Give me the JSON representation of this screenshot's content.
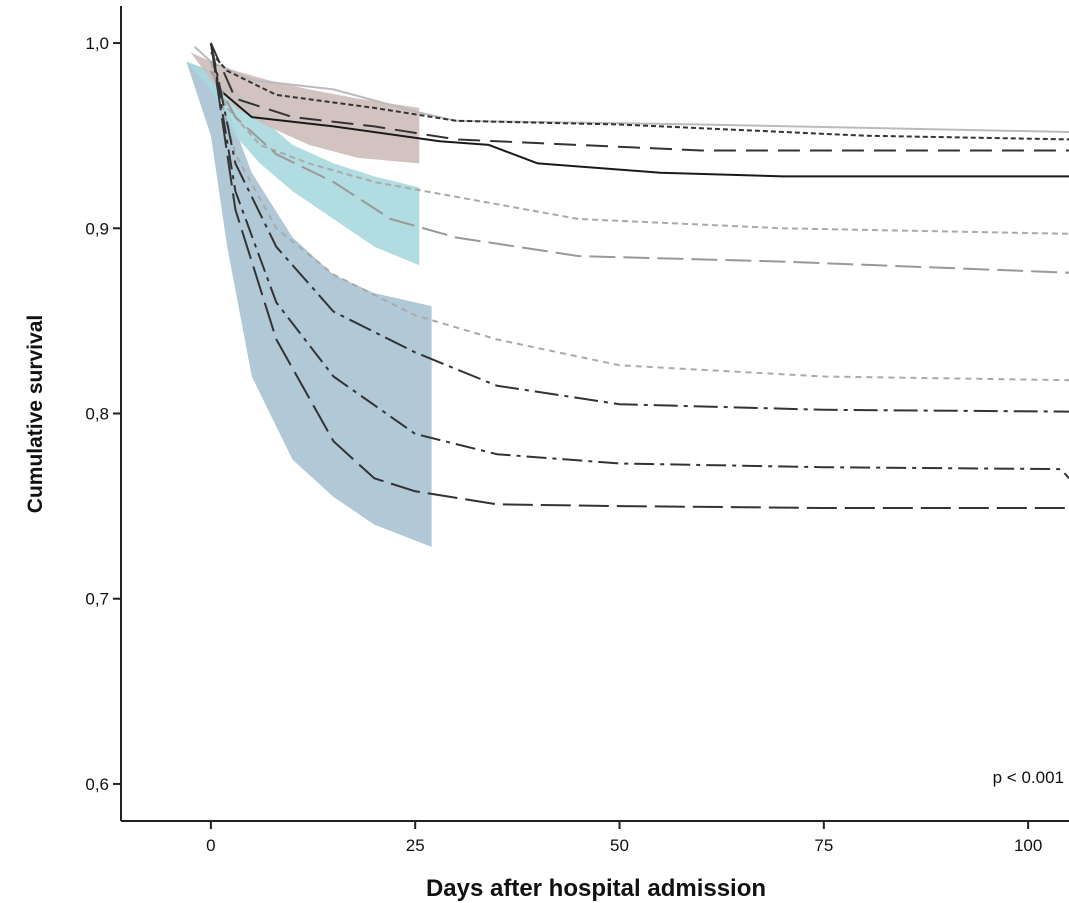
{
  "chart_data": {
    "type": "line",
    "title": "",
    "xlabel": "Days after hospital admission",
    "ylabel": "Cumulative survival",
    "xlim": [
      -11,
      105
    ],
    "ylim": [
      0.58,
      1.02
    ],
    "x_ticks": [
      0,
      25,
      50,
      75,
      100
    ],
    "x_tick_labels": [
      "0",
      "25",
      "50",
      "75",
      "100"
    ],
    "y_ticks": [
      0.6,
      0.7,
      0.8,
      0.9,
      1.0
    ],
    "y_tick_labels": [
      "0,6",
      "0,7",
      "0,8",
      "0,9",
      "1,0"
    ],
    "grid": false,
    "annotation": "p < 0.001",
    "bands": [
      {
        "color": "#a9c2d3",
        "x": [
          -3,
          0,
          2,
          5,
          10,
          15,
          20,
          27
        ],
        "lower": [
          0.99,
          0.95,
          0.89,
          0.82,
          0.775,
          0.755,
          0.74,
          0.728
        ],
        "upper": [
          0.99,
          0.985,
          0.965,
          0.93,
          0.895,
          0.875,
          0.865,
          0.858
        ]
      },
      {
        "color": "#a8d8df",
        "x": [
          -3,
          0,
          3,
          6,
          10,
          15,
          20,
          25.5
        ],
        "lower": [
          0.99,
          0.975,
          0.95,
          0.935,
          0.92,
          0.905,
          0.89,
          0.88
        ],
        "upper": [
          0.99,
          0.985,
          0.975,
          0.96,
          0.945,
          0.935,
          0.928,
          0.922
        ]
      },
      {
        "color": "#cdbdba",
        "x": [
          -2.5,
          0,
          3,
          7,
          12,
          18,
          25.5
        ],
        "lower": [
          0.995,
          0.98,
          0.965,
          0.955,
          0.945,
          0.938,
          0.935
        ],
        "upper": [
          0.995,
          0.99,
          0.985,
          0.98,
          0.975,
          0.97,
          0.965
        ]
      }
    ],
    "series": [
      {
        "color": "#bbbbbb",
        "dash": "",
        "x": [
          -2,
          0,
          5,
          15,
          25,
          30,
          60,
          105
        ],
        "y": [
          0.998,
          0.99,
          0.98,
          0.975,
          0.963,
          0.958,
          0.956,
          0.952
        ]
      },
      {
        "color": "#333333",
        "dash": "5 3",
        "x": [
          0,
          2,
          8,
          20,
          30,
          50,
          80,
          105
        ],
        "y": [
          0.995,
          0.985,
          0.972,
          0.965,
          0.958,
          0.956,
          0.95,
          0.948
        ]
      },
      {
        "color": "#333333",
        "dash": "22 10",
        "x": [
          0,
          3,
          10,
          20,
          30,
          60,
          105
        ],
        "y": [
          1.0,
          0.97,
          0.96,
          0.955,
          0.948,
          0.942,
          0.942
        ]
      },
      {
        "color": "#1a1a1a",
        "dash": "",
        "x": [
          0,
          1,
          5,
          15,
          28,
          34,
          40,
          55,
          70,
          105
        ],
        "y": [
          1.0,
          0.975,
          0.96,
          0.955,
          0.947,
          0.945,
          0.935,
          0.93,
          0.928,
          0.928
        ]
      },
      {
        "color": "#aaaaaa",
        "dash": "6 4",
        "x": [
          0,
          2,
          6,
          12,
          20,
          30,
          45,
          70,
          105
        ],
        "y": [
          0.99,
          0.965,
          0.945,
          0.935,
          0.925,
          0.917,
          0.905,
          0.9,
          0.897
        ]
      },
      {
        "color": "#999999",
        "dash": "26 8",
        "x": [
          0,
          3,
          8,
          15,
          22,
          30,
          45,
          70,
          105
        ],
        "y": [
          0.985,
          0.96,
          0.94,
          0.925,
          0.905,
          0.895,
          0.885,
          0.882,
          0.876
        ]
      },
      {
        "color": "#aaaaaa",
        "dash": "6 5",
        "x": [
          0,
          3,
          8,
          15,
          25,
          35,
          50,
          75,
          105
        ],
        "y": [
          0.99,
          0.94,
          0.9,
          0.875,
          0.853,
          0.84,
          0.826,
          0.82,
          0.818
        ]
      },
      {
        "color": "#333333",
        "dash": "24 6 4 6",
        "x": [
          0,
          3,
          8,
          15,
          25,
          35,
          50,
          75,
          105
        ],
        "y": [
          1.0,
          0.935,
          0.89,
          0.855,
          0.833,
          0.815,
          0.805,
          0.802,
          0.801
        ]
      },
      {
        "color": "#333333",
        "dash": "20 6 4 6",
        "x": [
          0,
          3,
          8,
          15,
          25,
          35,
          50,
          75,
          104,
          105
        ],
        "y": [
          1.0,
          0.92,
          0.86,
          0.82,
          0.789,
          0.778,
          0.773,
          0.771,
          0.77,
          0.765
        ]
      },
      {
        "color": "#333333",
        "dash": "30 8",
        "x": [
          0,
          3,
          8,
          15,
          20,
          25,
          35,
          50,
          75,
          105
        ],
        "y": [
          1.0,
          0.91,
          0.84,
          0.785,
          0.765,
          0.758,
          0.751,
          0.75,
          0.749,
          0.749
        ]
      }
    ]
  }
}
